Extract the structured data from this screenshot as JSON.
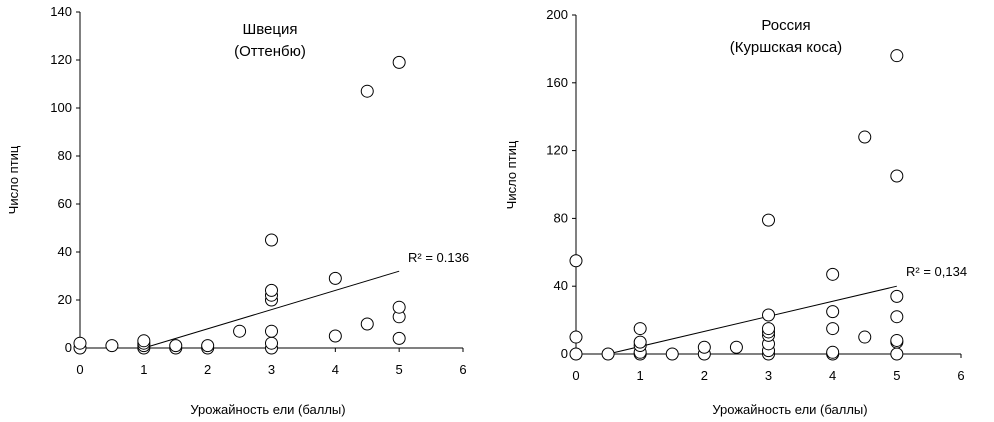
{
  "chart_data": [
    {
      "type": "scatter",
      "title": "Швеция",
      "subtitle": "(Оттенбю)",
      "xlabel": "Урожайность ели (баллы)",
      "ylabel": "Число птиц",
      "xlim": [
        0,
        6
      ],
      "ylim": [
        0,
        140
      ],
      "xticks": [
        0,
        1,
        2,
        3,
        4,
        5,
        6
      ],
      "yticks": [
        0,
        20,
        40,
        60,
        80,
        100,
        120,
        140
      ],
      "grid": false,
      "legend": "none",
      "annotation": "R² = 0.136",
      "trendline": {
        "x": [
          1,
          5
        ],
        "y": [
          0,
          32
        ]
      },
      "points": [
        {
          "x": 0,
          "y": 0
        },
        {
          "x": 0,
          "y": 2
        },
        {
          "x": 0.5,
          "y": 1
        },
        {
          "x": 1,
          "y": 0
        },
        {
          "x": 1,
          "y": 1
        },
        {
          "x": 1,
          "y": 2
        },
        {
          "x": 1,
          "y": 3
        },
        {
          "x": 1.5,
          "y": 0
        },
        {
          "x": 1.5,
          "y": 1
        },
        {
          "x": 2,
          "y": 0
        },
        {
          "x": 2,
          "y": 1
        },
        {
          "x": 2.5,
          "y": 7
        },
        {
          "x": 3,
          "y": 0
        },
        {
          "x": 3,
          "y": 2
        },
        {
          "x": 3,
          "y": 7
        },
        {
          "x": 3,
          "y": 20
        },
        {
          "x": 3,
          "y": 22
        },
        {
          "x": 3,
          "y": 24
        },
        {
          "x": 3,
          "y": 45
        },
        {
          "x": 4,
          "y": 5
        },
        {
          "x": 4,
          "y": 29
        },
        {
          "x": 4.5,
          "y": 10
        },
        {
          "x": 4.5,
          "y": 107
        },
        {
          "x": 5,
          "y": 4
        },
        {
          "x": 5,
          "y": 13
        },
        {
          "x": 5,
          "y": 17
        },
        {
          "x": 5,
          "y": 119
        }
      ]
    },
    {
      "type": "scatter",
      "title": "Россия",
      "subtitle": "(Куршская коса)",
      "xlabel": "Урожайность ели (баллы)",
      "ylabel": "Число птиц",
      "xlim": [
        0,
        6
      ],
      "ylim": [
        0,
        200
      ],
      "xticks": [
        0,
        1,
        2,
        3,
        4,
        5,
        6
      ],
      "yticks": [
        0,
        40,
        80,
        120,
        160,
        200
      ],
      "grid": false,
      "legend": "none",
      "annotation": "R² = 0,134",
      "trendline": {
        "x": [
          0.5,
          5
        ],
        "y": [
          0,
          40
        ]
      },
      "points": [
        {
          "x": 0,
          "y": 0
        },
        {
          "x": 0,
          "y": 10
        },
        {
          "x": 0,
          "y": 55
        },
        {
          "x": 0.5,
          "y": 0
        },
        {
          "x": 1,
          "y": 0
        },
        {
          "x": 1,
          "y": 1
        },
        {
          "x": 1,
          "y": 5
        },
        {
          "x": 1,
          "y": 7
        },
        {
          "x": 1,
          "y": 15
        },
        {
          "x": 1.5,
          "y": 0
        },
        {
          "x": 2,
          "y": 0
        },
        {
          "x": 2,
          "y": 4
        },
        {
          "x": 2.5,
          "y": 4
        },
        {
          "x": 3,
          "y": 0
        },
        {
          "x": 3,
          "y": 2
        },
        {
          "x": 3,
          "y": 6
        },
        {
          "x": 3,
          "y": 11
        },
        {
          "x": 3,
          "y": 13
        },
        {
          "x": 3,
          "y": 15
        },
        {
          "x": 3,
          "y": 23
        },
        {
          "x": 3,
          "y": 79
        },
        {
          "x": 4,
          "y": 0
        },
        {
          "x": 4,
          "y": 1
        },
        {
          "x": 4,
          "y": 15
        },
        {
          "x": 4,
          "y": 25
        },
        {
          "x": 4,
          "y": 47
        },
        {
          "x": 4.5,
          "y": 10
        },
        {
          "x": 4.5,
          "y": 128
        },
        {
          "x": 5,
          "y": 0
        },
        {
          "x": 5,
          "y": 7
        },
        {
          "x": 5,
          "y": 8
        },
        {
          "x": 5,
          "y": 22
        },
        {
          "x": 5,
          "y": 34
        },
        {
          "x": 5,
          "y": 105
        },
        {
          "x": 5,
          "y": 176
        }
      ]
    }
  ]
}
